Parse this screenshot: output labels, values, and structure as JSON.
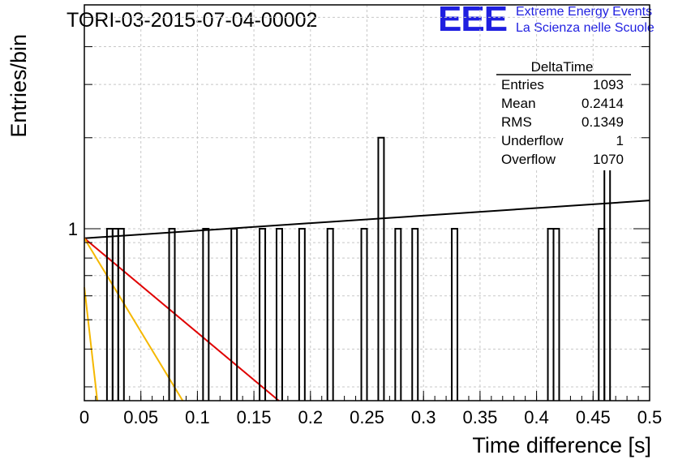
{
  "header": {
    "run_title": "TORI-03-2015-07-04-00002",
    "logo_text": "EEE",
    "brand_line1": "Extreme Energy Events",
    "brand_line2": "La Scienza nelle Scuole",
    "brand_color": "#1f1fe0"
  },
  "stats": {
    "title": "DeltaTime",
    "rows": [
      {
        "label": "Entries",
        "value": "1093"
      },
      {
        "label": "Mean",
        "value": "0.2414"
      },
      {
        "label": "RMS",
        "value": "0.1349"
      },
      {
        "label": "Underflow",
        "value": "1"
      },
      {
        "label": "Overflow",
        "value": "1070"
      }
    ]
  },
  "chart_data": {
    "type": "bar",
    "title": "TORI-03-2015-07-04-00002",
    "xlabel": "Time difference [s]",
    "ylabel": "Entries/bin",
    "xlim": [
      0,
      0.5
    ],
    "ylim": [
      0.27,
      5.5
    ],
    "log_y": true,
    "grid": true,
    "bin_width": 0.005,
    "x_ticks": [
      "0",
      "0.05",
      "0.1",
      "0.15",
      "0.2",
      "0.25",
      "0.3",
      "0.35",
      "0.4",
      "0.45",
      "0.5"
    ],
    "y_tick_labels": [
      {
        "value": 1,
        "label": "1"
      }
    ],
    "histogram": [
      {
        "x": 0.02,
        "y": 1
      },
      {
        "x": 0.025,
        "y": 1
      },
      {
        "x": 0.03,
        "y": 1
      },
      {
        "x": 0.075,
        "y": 1
      },
      {
        "x": 0.105,
        "y": 1
      },
      {
        "x": 0.13,
        "y": 1
      },
      {
        "x": 0.155,
        "y": 1
      },
      {
        "x": 0.17,
        "y": 1
      },
      {
        "x": 0.19,
        "y": 1
      },
      {
        "x": 0.215,
        "y": 1
      },
      {
        "x": 0.245,
        "y": 1
      },
      {
        "x": 0.26,
        "y": 2
      },
      {
        "x": 0.275,
        "y": 1
      },
      {
        "x": 0.29,
        "y": 1
      },
      {
        "x": 0.325,
        "y": 1
      },
      {
        "x": 0.41,
        "y": 1
      },
      {
        "x": 0.415,
        "y": 1
      },
      {
        "x": 0.455,
        "y": 1
      },
      {
        "x": 0.46,
        "y": 2
      }
    ],
    "fits": [
      {
        "color": "#000000",
        "points": [
          [
            0,
            0.93
          ],
          [
            0.5,
            1.24
          ]
        ]
      },
      {
        "color": "#e00000",
        "points": [
          [
            0,
            0.93
          ],
          [
            0.172,
            0.27
          ]
        ]
      },
      {
        "color": "#f5b800",
        "points": [
          [
            0,
            0.93
          ],
          [
            0.087,
            0.27
          ]
        ]
      },
      {
        "color": "#f5b800",
        "points": [
          [
            0,
            0.64
          ],
          [
            0.0115,
            0.27
          ]
        ]
      }
    ]
  }
}
